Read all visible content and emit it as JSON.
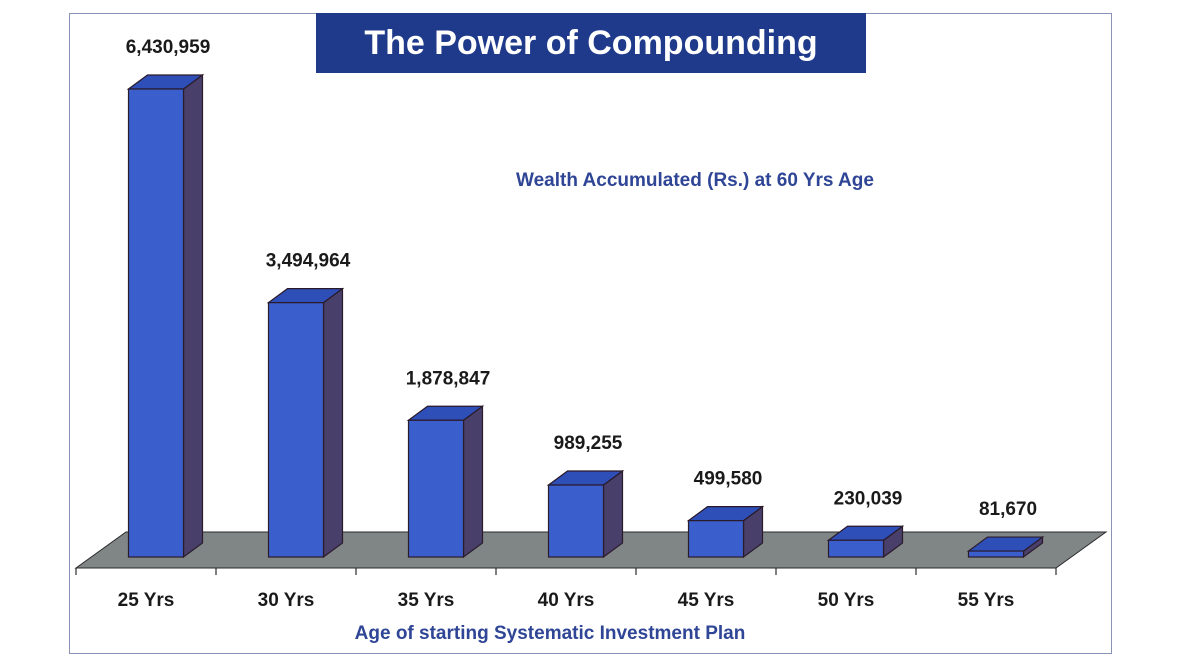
{
  "chart_data": {
    "type": "bar",
    "title": "The Power of Compounding",
    "subtitle": "Wealth Accumulated (Rs.) at 60 Yrs Age",
    "xlabel": "Age of starting Systematic Investment Plan",
    "ylabel": "",
    "categories": [
      "25 Yrs",
      "30 Yrs",
      "35 Yrs",
      "40 Yrs",
      "45 Yrs",
      "50 Yrs",
      "55 Yrs"
    ],
    "values": [
      6430959,
      3494964,
      1878847,
      989255,
      499580,
      230039,
      81670
    ],
    "value_labels": [
      "6,430,959",
      "3,494,964",
      "1,878,847",
      "989,255",
      "499,580",
      "230,039",
      "81,670"
    ],
    "ylim": [
      0,
      6430959
    ],
    "grid": false,
    "legend": "none",
    "style": "3d-column"
  },
  "colors": {
    "title_bg": "#1f3a8a",
    "title_text": "#ffffff",
    "accent_text": "#2f4596",
    "bar_front": "#3a5fcd",
    "bar_top": "#2e4fb8",
    "bar_side": "#48406a",
    "floor": "#808586",
    "frame_border": "#8a93b5"
  }
}
